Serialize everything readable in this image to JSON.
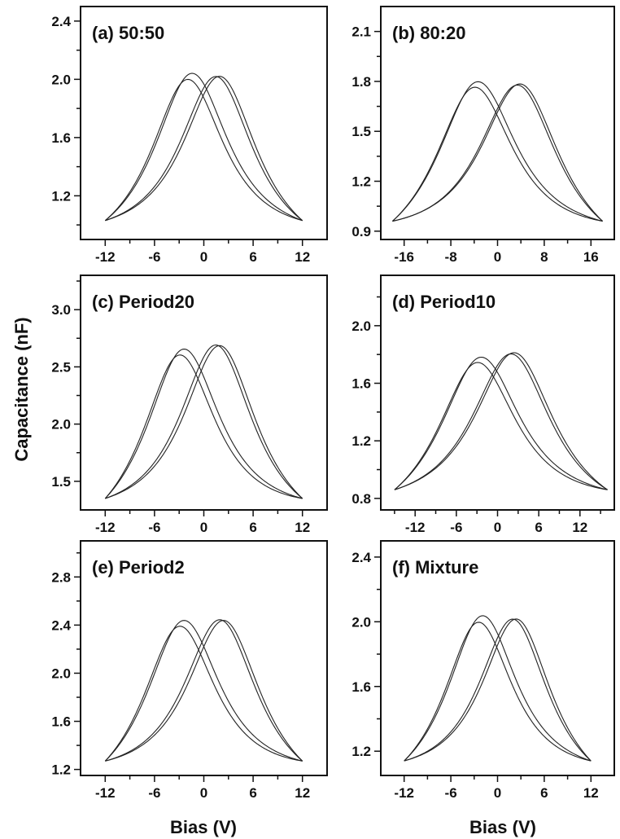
{
  "figure": {
    "ylabel": "Capacitance (nF)",
    "xlabels": [
      "Bias (V)",
      "Bias (V)"
    ]
  },
  "chart_data": [
    {
      "type": "line",
      "title": "(a) 50:50",
      "xlim": [
        -15,
        15
      ],
      "ylim": [
        0.9,
        2.5
      ],
      "xticks": [
        -12,
        -6,
        0,
        6,
        12
      ],
      "xticklabels": [
        "-12",
        "-6",
        "0",
        "6",
        "12"
      ],
      "yticks": [
        1.2,
        1.6,
        2.0,
        2.4
      ],
      "yticklabels": [
        "1.2",
        "1.6",
        "2.0",
        "2.4"
      ],
      "peaks": [
        -2,
        1.5
      ],
      "peak_value": 2.07,
      "end_value": 1.03,
      "x_range": [
        -12,
        12
      ],
      "series": [
        {
          "x": [
            -12,
            -9,
            -6,
            -4,
            -2,
            0,
            2,
            4,
            6,
            9,
            12
          ],
          "values": [
            1.03,
            1.22,
            1.52,
            1.83,
            2.07,
            1.96,
            1.78,
            1.58,
            1.4,
            1.2,
            1.03
          ]
        },
        {
          "x": [
            -12,
            -9,
            -6,
            -3,
            -1,
            1.5,
            3,
            5,
            7,
            9,
            12
          ],
          "values": [
            1.03,
            1.16,
            1.31,
            1.55,
            1.77,
            2.08,
            1.97,
            1.72,
            1.45,
            1.25,
            1.03
          ]
        }
      ]
    },
    {
      "type": "line",
      "title": "(b) 80:20",
      "xlim": [
        -20,
        20
      ],
      "ylim": [
        0.85,
        2.25
      ],
      "xticks": [
        -16,
        -8,
        0,
        8,
        16
      ],
      "xticklabels": [
        "-16",
        "-8",
        "0",
        "8",
        "16"
      ],
      "yticks": [
        0.9,
        1.2,
        1.5,
        1.8,
        2.1
      ],
      "yticklabels": [
        "0.9",
        "1.2",
        "1.5",
        "1.8",
        "2.1"
      ],
      "peaks": [
        -4,
        3.5
      ],
      "peak_value": 1.85,
      "end_value": 0.96,
      "x_range": [
        -18,
        18
      ],
      "series": [
        {
          "x": [
            -18,
            -12,
            -8,
            -4,
            -1,
            2,
            6,
            10,
            14,
            18
          ],
          "values": [
            0.96,
            1.22,
            1.56,
            1.85,
            1.64,
            1.43,
            1.23,
            1.1,
            1.01,
            0.96
          ]
        },
        {
          "x": [
            -18,
            -14,
            -10,
            -6,
            -2,
            1,
            3.5,
            6,
            10,
            14,
            18
          ],
          "values": [
            0.96,
            1.03,
            1.12,
            1.26,
            1.45,
            1.68,
            1.85,
            1.58,
            1.25,
            1.06,
            0.96
          ]
        }
      ]
    },
    {
      "type": "line",
      "title": "(c) Period20",
      "xlim": [
        -15,
        15
      ],
      "ylim": [
        1.25,
        3.3
      ],
      "xticks": [
        -12,
        -6,
        0,
        6,
        12
      ],
      "xticklabels": [
        "-12",
        "-6",
        "0",
        "6",
        "12"
      ],
      "yticks": [
        1.5,
        2.0,
        2.5,
        3.0
      ],
      "yticklabels": [
        "1.5",
        "2.0",
        "2.5",
        "3.0"
      ],
      "peaks": [
        -3,
        1.5
      ],
      "peak_value": 2.76,
      "end_value": 1.35,
      "x_range": [
        -12,
        12
      ],
      "series": [
        {
          "x": [
            -12,
            -9,
            -6,
            -3,
            0,
            3,
            6,
            9,
            12
          ],
          "values": [
            1.38,
            1.65,
            2.12,
            2.75,
            2.35,
            1.98,
            1.68,
            1.46,
            1.31
          ]
        },
        {
          "x": [
            -12,
            -9,
            -6,
            -3,
            -1,
            1.5,
            4,
            7,
            12
          ],
          "values": [
            1.38,
            1.55,
            1.78,
            2.1,
            2.45,
            2.76,
            2.3,
            1.75,
            1.3
          ]
        }
      ]
    },
    {
      "type": "line",
      "title": "(d) Period10",
      "xlim": [
        -17,
        17
      ],
      "ylim": [
        0.72,
        2.35
      ],
      "xticks": [
        -12,
        -6,
        0,
        6,
        12
      ],
      "xticklabels": [
        "-12",
        "-6",
        "0",
        "6",
        "12"
      ],
      "yticks": [
        0.8,
        1.2,
        1.6,
        2.0
      ],
      "yticklabels": [
        "0.8",
        "1.2",
        "1.6",
        "2.0"
      ],
      "peaks": [
        -3,
        2
      ],
      "peak_value": 1.84,
      "end_value": 0.86,
      "x_range": [
        -15,
        16
      ],
      "series": [
        {
          "x": [
            -15,
            -12,
            -9,
            -6,
            -3,
            0,
            3,
            6,
            9,
            12,
            16
          ],
          "values": [
            0.86,
            0.98,
            1.2,
            1.55,
            1.84,
            1.58,
            1.36,
            1.16,
            1.02,
            0.92,
            0.84
          ]
        },
        {
          "x": [
            -15,
            -12,
            -9,
            -6,
            -3,
            0,
            2,
            5,
            8,
            12,
            16
          ],
          "values": [
            0.86,
            0.92,
            1.0,
            1.14,
            1.34,
            1.62,
            1.84,
            1.6,
            1.25,
            0.98,
            0.84
          ]
        }
      ]
    },
    {
      "type": "line",
      "title": "(e) Period2",
      "xlim": [
        -15,
        15
      ],
      "ylim": [
        1.15,
        3.1
      ],
      "xticks": [
        -12,
        -6,
        0,
        6,
        12
      ],
      "xticklabels": [
        "-12",
        "-6",
        "0",
        "6",
        "12"
      ],
      "yticks": [
        1.2,
        1.6,
        2.0,
        2.4,
        2.8
      ],
      "yticklabels": [
        "1.2",
        "1.6",
        "2.0",
        "2.4",
        "2.8"
      ],
      "peaks": [
        -3,
        2
      ],
      "peak_value": 2.53,
      "end_value": 1.27,
      "x_range": [
        -12,
        12
      ],
      "series": [
        {
          "x": [
            -12,
            -9,
            -6,
            -3,
            0,
            3,
            6,
            9,
            12
          ],
          "values": [
            1.28,
            1.52,
            1.98,
            2.53,
            2.24,
            1.88,
            1.58,
            1.38,
            1.25
          ]
        },
        {
          "x": [
            -12,
            -9,
            -6,
            -3,
            0,
            2,
            4,
            6,
            9,
            12
          ],
          "values": [
            1.28,
            1.4,
            1.6,
            1.9,
            2.28,
            2.53,
            2.28,
            1.9,
            1.5,
            1.25
          ]
        }
      ]
    },
    {
      "type": "line",
      "title": "(f) Mixture",
      "xlim": [
        -15,
        15
      ],
      "ylim": [
        1.05,
        2.5
      ],
      "xticks": [
        -12,
        -6,
        0,
        6,
        12
      ],
      "xticklabels": [
        "-12",
        "-6",
        "0",
        "6",
        "12"
      ],
      "yticks": [
        1.2,
        1.6,
        2.0,
        2.4
      ],
      "yticklabels": [
        "1.2",
        "1.6",
        "2.0",
        "2.4"
      ],
      "peaks": [
        -2.5,
        2
      ],
      "peak_value": 2.08,
      "end_value": 1.14,
      "x_range": [
        -12,
        12
      ],
      "series": [
        {
          "x": [
            -12,
            -9,
            -6,
            -2.5,
            0,
            3,
            6,
            9,
            12
          ],
          "values": [
            1.14,
            1.36,
            1.68,
            2.08,
            1.9,
            1.62,
            1.4,
            1.24,
            1.11
          ]
        },
        {
          "x": [
            -12,
            -9,
            -6,
            -3,
            0,
            2,
            4,
            6,
            9,
            12
          ],
          "values": [
            1.14,
            1.26,
            1.42,
            1.64,
            1.96,
            2.08,
            1.9,
            1.62,
            1.32,
            1.11
          ]
        }
      ]
    }
  ]
}
